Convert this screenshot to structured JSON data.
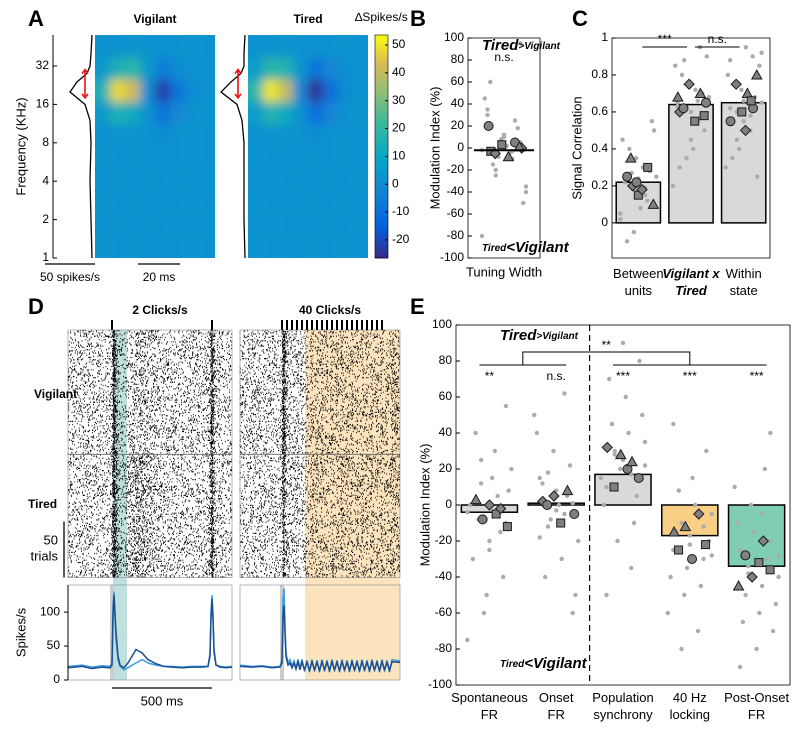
{
  "chart_data": [
    {
      "type": "heatmap",
      "panel": "A",
      "titles": [
        "Vigilant",
        "Tired"
      ],
      "title_colors": [
        "#3ba0e6",
        "#1a5aa0"
      ],
      "ylabel": "Frequency (KHz)",
      "yscale": "log",
      "ylim": [
        1,
        56
      ],
      "yticks": [
        1,
        2,
        4,
        8,
        16,
        32
      ],
      "xlim": [
        0,
        57
      ],
      "colorbar_label": "∆Spikes/s",
      "clim": [
        -26.5,
        53.6
      ],
      "cticks": [
        -20,
        -10,
        0,
        10,
        20,
        30,
        40,
        50
      ],
      "maps": [
        [
          [
            2,
            2,
            3,
            2,
            2,
            2,
            3,
            2
          ],
          [
            5,
            15,
            18,
            5,
            -5,
            0,
            2,
            2
          ],
          [
            15,
            48,
            42,
            0,
            -22,
            -8,
            0,
            2
          ],
          [
            5,
            15,
            12,
            2,
            -8,
            -2,
            2,
            3
          ],
          [
            2,
            3,
            3,
            2,
            0,
            2,
            3,
            2
          ],
          [
            3,
            2,
            3,
            2,
            3,
            2,
            3,
            2
          ],
          [
            2,
            3,
            2,
            3,
            2,
            3,
            2,
            3
          ],
          [
            3,
            2,
            3,
            2,
            3,
            2,
            3,
            2
          ],
          [
            2,
            3,
            2,
            3,
            2,
            3,
            2,
            3
          ],
          [
            3,
            2,
            3,
            2,
            3,
            2,
            3,
            2
          ]
        ],
        [
          [
            2,
            2,
            3,
            2,
            2,
            2,
            3,
            2
          ],
          [
            6,
            18,
            16,
            3,
            -8,
            -2,
            1,
            2
          ],
          [
            18,
            50,
            40,
            -2,
            -25,
            -10,
            0,
            2
          ],
          [
            6,
            16,
            12,
            1,
            -10,
            -3,
            2,
            3
          ],
          [
            2,
            3,
            3,
            2,
            0,
            2,
            3,
            2
          ],
          [
            3,
            2,
            3,
            2,
            3,
            2,
            3,
            2
          ],
          [
            2,
            3,
            2,
            3,
            2,
            3,
            2,
            3
          ],
          [
            3,
            2,
            3,
            2,
            3,
            2,
            3,
            2
          ],
          [
            2,
            3,
            2,
            3,
            2,
            3,
            2,
            3
          ],
          [
            3,
            2,
            3,
            2,
            3,
            2,
            3,
            2
          ]
        ]
      ],
      "tuning": {
        "rate_lim": [
          0,
          42
        ],
        "freqs": [
          1,
          2,
          4,
          8,
          12,
          16,
          20,
          24,
          28,
          32,
          40,
          56
        ],
        "values": [
          [
            3,
            4,
            5,
            4,
            5,
            10,
            25,
            18,
            8,
            5,
            4,
            3
          ],
          [
            3,
            4,
            4,
            4,
            6,
            11,
            27,
            17,
            7,
            4,
            4,
            3
          ]
        ]
      },
      "scalebars": [
        {
          "value": 50,
          "label": "50 spikes/s"
        },
        {
          "value": 20,
          "label": "20 ms"
        }
      ]
    },
    {
      "type": "swarm",
      "panel": "B",
      "ylabel": "Modulation Index (%)",
      "xlabel": "Tuning Width",
      "ylim": [
        -100,
        100
      ],
      "yticks": [
        -100,
        -80,
        -60,
        -40,
        -20,
        0,
        20,
        40,
        60,
        80,
        100
      ],
      "annotations": {
        "top": [
          "Tired",
          ">Vigilant"
        ],
        "bottom": [
          "Tired",
          "<Vigilant"
        ]
      },
      "significance": "n.s.",
      "median": -2,
      "points": [
        -2,
        5,
        -10,
        12,
        -20,
        30,
        -35,
        18,
        -5,
        8,
        -15,
        45,
        -50,
        25,
        2,
        -8,
        60,
        -80,
        95,
        -3,
        10,
        -25,
        35,
        -40
      ],
      "units": [
        -3,
        0,
        5,
        -8,
        3,
        -5,
        20,
        1
      ]
    },
    {
      "type": "bar",
      "panel": "C",
      "ylabel": "Signal Correlation",
      "ylim": [
        -0.19,
        1
      ],
      "yticks": [
        0,
        0.2,
        0.4,
        0.6,
        0.8,
        1
      ],
      "categories": [
        [
          "Between",
          "units"
        ],
        [
          "Vigilant x",
          "Tired"
        ],
        [
          "Within",
          "state"
        ]
      ],
      "category_colors": [
        "#000000",
        "#1a5aa6",
        "#000000"
      ],
      "values": [
        0.22,
        0.64,
        0.65
      ],
      "color": "#d9d9d9",
      "significance": [
        "***",
        "n.s."
      ],
      "points": [
        [
          0.05,
          0.1,
          0.15,
          0.18,
          0.2,
          0.22,
          0.25,
          0.28,
          0.3,
          0.35,
          0.4,
          0.45,
          0.5,
          0.12,
          0.08,
          -0.05,
          -0.1,
          0.02,
          0.55,
          0.19,
          0.24,
          0.27
        ],
        [
          0.5,
          0.55,
          0.6,
          0.62,
          0.65,
          0.68,
          0.7,
          0.72,
          0.75,
          0.8,
          0.85,
          0.9,
          0.95,
          0.4,
          0.35,
          0.3,
          0.2,
          0.58,
          0.66,
          0.45,
          0.88,
          0.63
        ],
        [
          0.5,
          0.55,
          0.6,
          0.62,
          0.65,
          0.68,
          0.7,
          0.72,
          0.75,
          0.8,
          0.85,
          0.9,
          0.95,
          0.4,
          0.35,
          0.3,
          0.25,
          0.58,
          0.66,
          0.45,
          0.88,
          0.92
        ]
      ],
      "units": [
        [
          0.15,
          0.2,
          0.25,
          0.1,
          0.3,
          0.18,
          0.22,
          0.35
        ],
        [
          0.6,
          0.65,
          0.7,
          0.55,
          0.75,
          0.62,
          0.68,
          0.58
        ],
        [
          0.62,
          0.7,
          0.6,
          0.75,
          0.55,
          0.8,
          0.66,
          0.5
        ]
      ]
    },
    {
      "type": "raster_psth",
      "panel": "D",
      "ylabel": "Spikes/s",
      "ylim": [
        0,
        140
      ],
      "yticks": [
        0,
        50,
        100
      ],
      "series": [
        {
          "name": "Vigilant",
          "color": "#3d9be0",
          "trials": 111
        },
        {
          "name": "Tired",
          "color": "#1b4f8f",
          "trials": 110
        }
      ],
      "scalebars": [
        {
          "value": 500,
          "label": "500 ms"
        },
        {
          "value": 50,
          "label": [
            "50",
            "trials"
          ]
        }
      ],
      "panels": [
        {
          "title": "2 Clicks/s",
          "clicks": [
            0,
            500
          ],
          "xlim": [
            -220,
            600
          ],
          "x": [
            -220,
            -150,
            -100,
            -50,
            -10,
            0,
            5,
            10,
            20,
            30,
            40,
            60,
            80,
            100,
            120,
            150,
            180,
            220,
            260,
            300,
            350,
            400,
            450,
            480,
            490,
            495,
            500,
            505,
            510,
            520,
            540,
            570,
            600
          ],
          "values": [
            [
              20,
              22,
              19,
              21,
              20,
              25,
              110,
              130,
              60,
              30,
              20,
              15,
              18,
              22,
              25,
              30,
              25,
              22,
              20,
              20,
              19,
              20,
              20,
              20,
              40,
              100,
              125,
              90,
              40,
              22,
              20,
              19,
              20
            ],
            [
              18,
              20,
              17,
              19,
              18,
              22,
              95,
              125,
              70,
              35,
              22,
              18,
              25,
              35,
              45,
              40,
              30,
              24,
              20,
              19,
              18,
              19,
              19,
              20,
              35,
              90,
              120,
              95,
              45,
              22,
              19,
              18,
              19
            ]
          ]
        },
        {
          "title": "40 Clicks/s",
          "clicks": [
            0,
            25,
            50,
            75,
            100,
            125,
            150,
            175,
            200,
            225,
            250,
            275,
            300,
            325,
            350,
            375,
            400,
            425,
            450,
            475,
            500
          ],
          "xlim": [
            -210,
            590
          ],
          "x": [
            -210,
            -150,
            -100,
            -50,
            -10,
            0,
            5,
            10,
            15,
            20,
            30,
            40,
            50,
            60,
            70,
            80,
            90,
            100,
            112.5,
            125,
            137.5,
            150,
            162.5,
            175,
            187.5,
            200,
            212.5,
            225,
            237.5,
            250,
            262.5,
            275,
            287.5,
            300,
            312.5,
            325,
            337.5,
            350,
            362.5,
            375,
            387.5,
            400,
            412.5,
            425,
            437.5,
            450,
            462.5,
            475,
            487.5,
            500,
            512.5,
            525,
            537.5,
            550,
            590
          ],
          "values": [
            [
              22,
              20,
              21,
              19,
              20,
              30,
              120,
              135,
              80,
              40,
              25,
              30,
              20,
              28,
              18,
              30,
              17,
              30,
              13,
              29,
              12,
              30,
              13,
              29,
              12,
              30,
              13,
              29,
              12,
              30,
              13,
              29,
              12,
              30,
              13,
              29,
              12,
              30,
              13,
              29,
              12,
              30,
              13,
              29,
              12,
              30,
              13,
              29,
              12,
              30,
              13,
              29,
              12,
              30,
              28
            ],
            [
              20,
              19,
              20,
              18,
              19,
              25,
              95,
              110,
              70,
              35,
              22,
              25,
              18,
              25,
              16,
              27,
              15,
              27,
              15,
              26,
              14,
              27,
              15,
              26,
              14,
              27,
              15,
              26,
              14,
              27,
              15,
              26,
              14,
              27,
              15,
              26,
              14,
              27,
              15,
              26,
              14,
              27,
              15,
              26,
              14,
              27,
              15,
              26,
              14,
              27,
              15,
              26,
              14,
              27,
              26
            ]
          ]
        }
      ]
    },
    {
      "type": "swarm_bar",
      "panel": "E",
      "ylabel": "Modulation Index (%)",
      "ylim": [
        -100,
        100
      ],
      "yticks": [
        -100,
        -80,
        -60,
        -40,
        -20,
        0,
        20,
        40,
        60,
        80,
        100
      ],
      "annotations": {
        "top": [
          "Tired",
          ">Vigilant"
        ],
        "bottom": [
          "Tired",
          "<Vigilant"
        ]
      },
      "categories": [
        [
          "Spontaneous",
          "FR"
        ],
        [
          "Onset",
          "FR"
        ],
        [
          "Population",
          "synchrony"
        ],
        [
          "40 Hz",
          "locking"
        ],
        [
          "Post-Onset",
          "FR"
        ]
      ],
      "category_colors": [
        "#000000",
        "#777777",
        "#000000",
        "#e8a623",
        "#2a8a70"
      ],
      "values": [
        -4,
        1,
        17,
        -17,
        -34
      ],
      "bar_colors": [
        "#d9d9d9",
        "#d9d9d9",
        "#d9d9d9",
        "#f9cf86",
        "#7fcdb5"
      ],
      "significance": [
        "**",
        "n.s.",
        "***",
        "***",
        "***"
      ],
      "group_significance": "**",
      "points": [
        [
          -4,
          -10,
          5,
          -20,
          12,
          -30,
          20,
          -40,
          30,
          -50,
          -8,
          0,
          8,
          -15,
          15,
          -60,
          40,
          -75,
          55,
          -2,
          -25,
          25
        ],
        [
          1,
          -5,
          8,
          -12,
          15,
          -20,
          22,
          -30,
          30,
          -40,
          40,
          -50,
          5,
          0,
          -8,
          12,
          50,
          -60,
          62,
          -3,
          18,
          -18
        ],
        [
          17,
          25,
          30,
          10,
          35,
          5,
          40,
          20,
          45,
          0,
          50,
          -10,
          60,
          -20,
          70,
          15,
          80,
          -35,
          90,
          28,
          -50,
          22
        ],
        [
          -17,
          -10,
          -25,
          -5,
          -30,
          0,
          -35,
          8,
          -40,
          -20,
          -45,
          15,
          -50,
          -15,
          -60,
          30,
          -70,
          -22,
          -80,
          45,
          -28,
          -12
        ],
        [
          -34,
          -25,
          -40,
          -20,
          -45,
          -15,
          -50,
          -10,
          -55,
          -30,
          -60,
          0,
          -65,
          10,
          -70,
          20,
          -80,
          -38,
          -90,
          -28,
          40,
          -5
        ]
      ],
      "units": [
        [
          -5,
          0,
          -8,
          3,
          -12,
          -2
        ],
        [
          2,
          -5,
          8,
          -10,
          5,
          0
        ],
        [
          20,
          28,
          10,
          32,
          15,
          24
        ],
        [
          -15,
          -22,
          -5,
          -30,
          -12,
          -25
        ],
        [
          -32,
          -40,
          -28,
          -45,
          -36,
          -20
        ]
      ]
    }
  ]
}
